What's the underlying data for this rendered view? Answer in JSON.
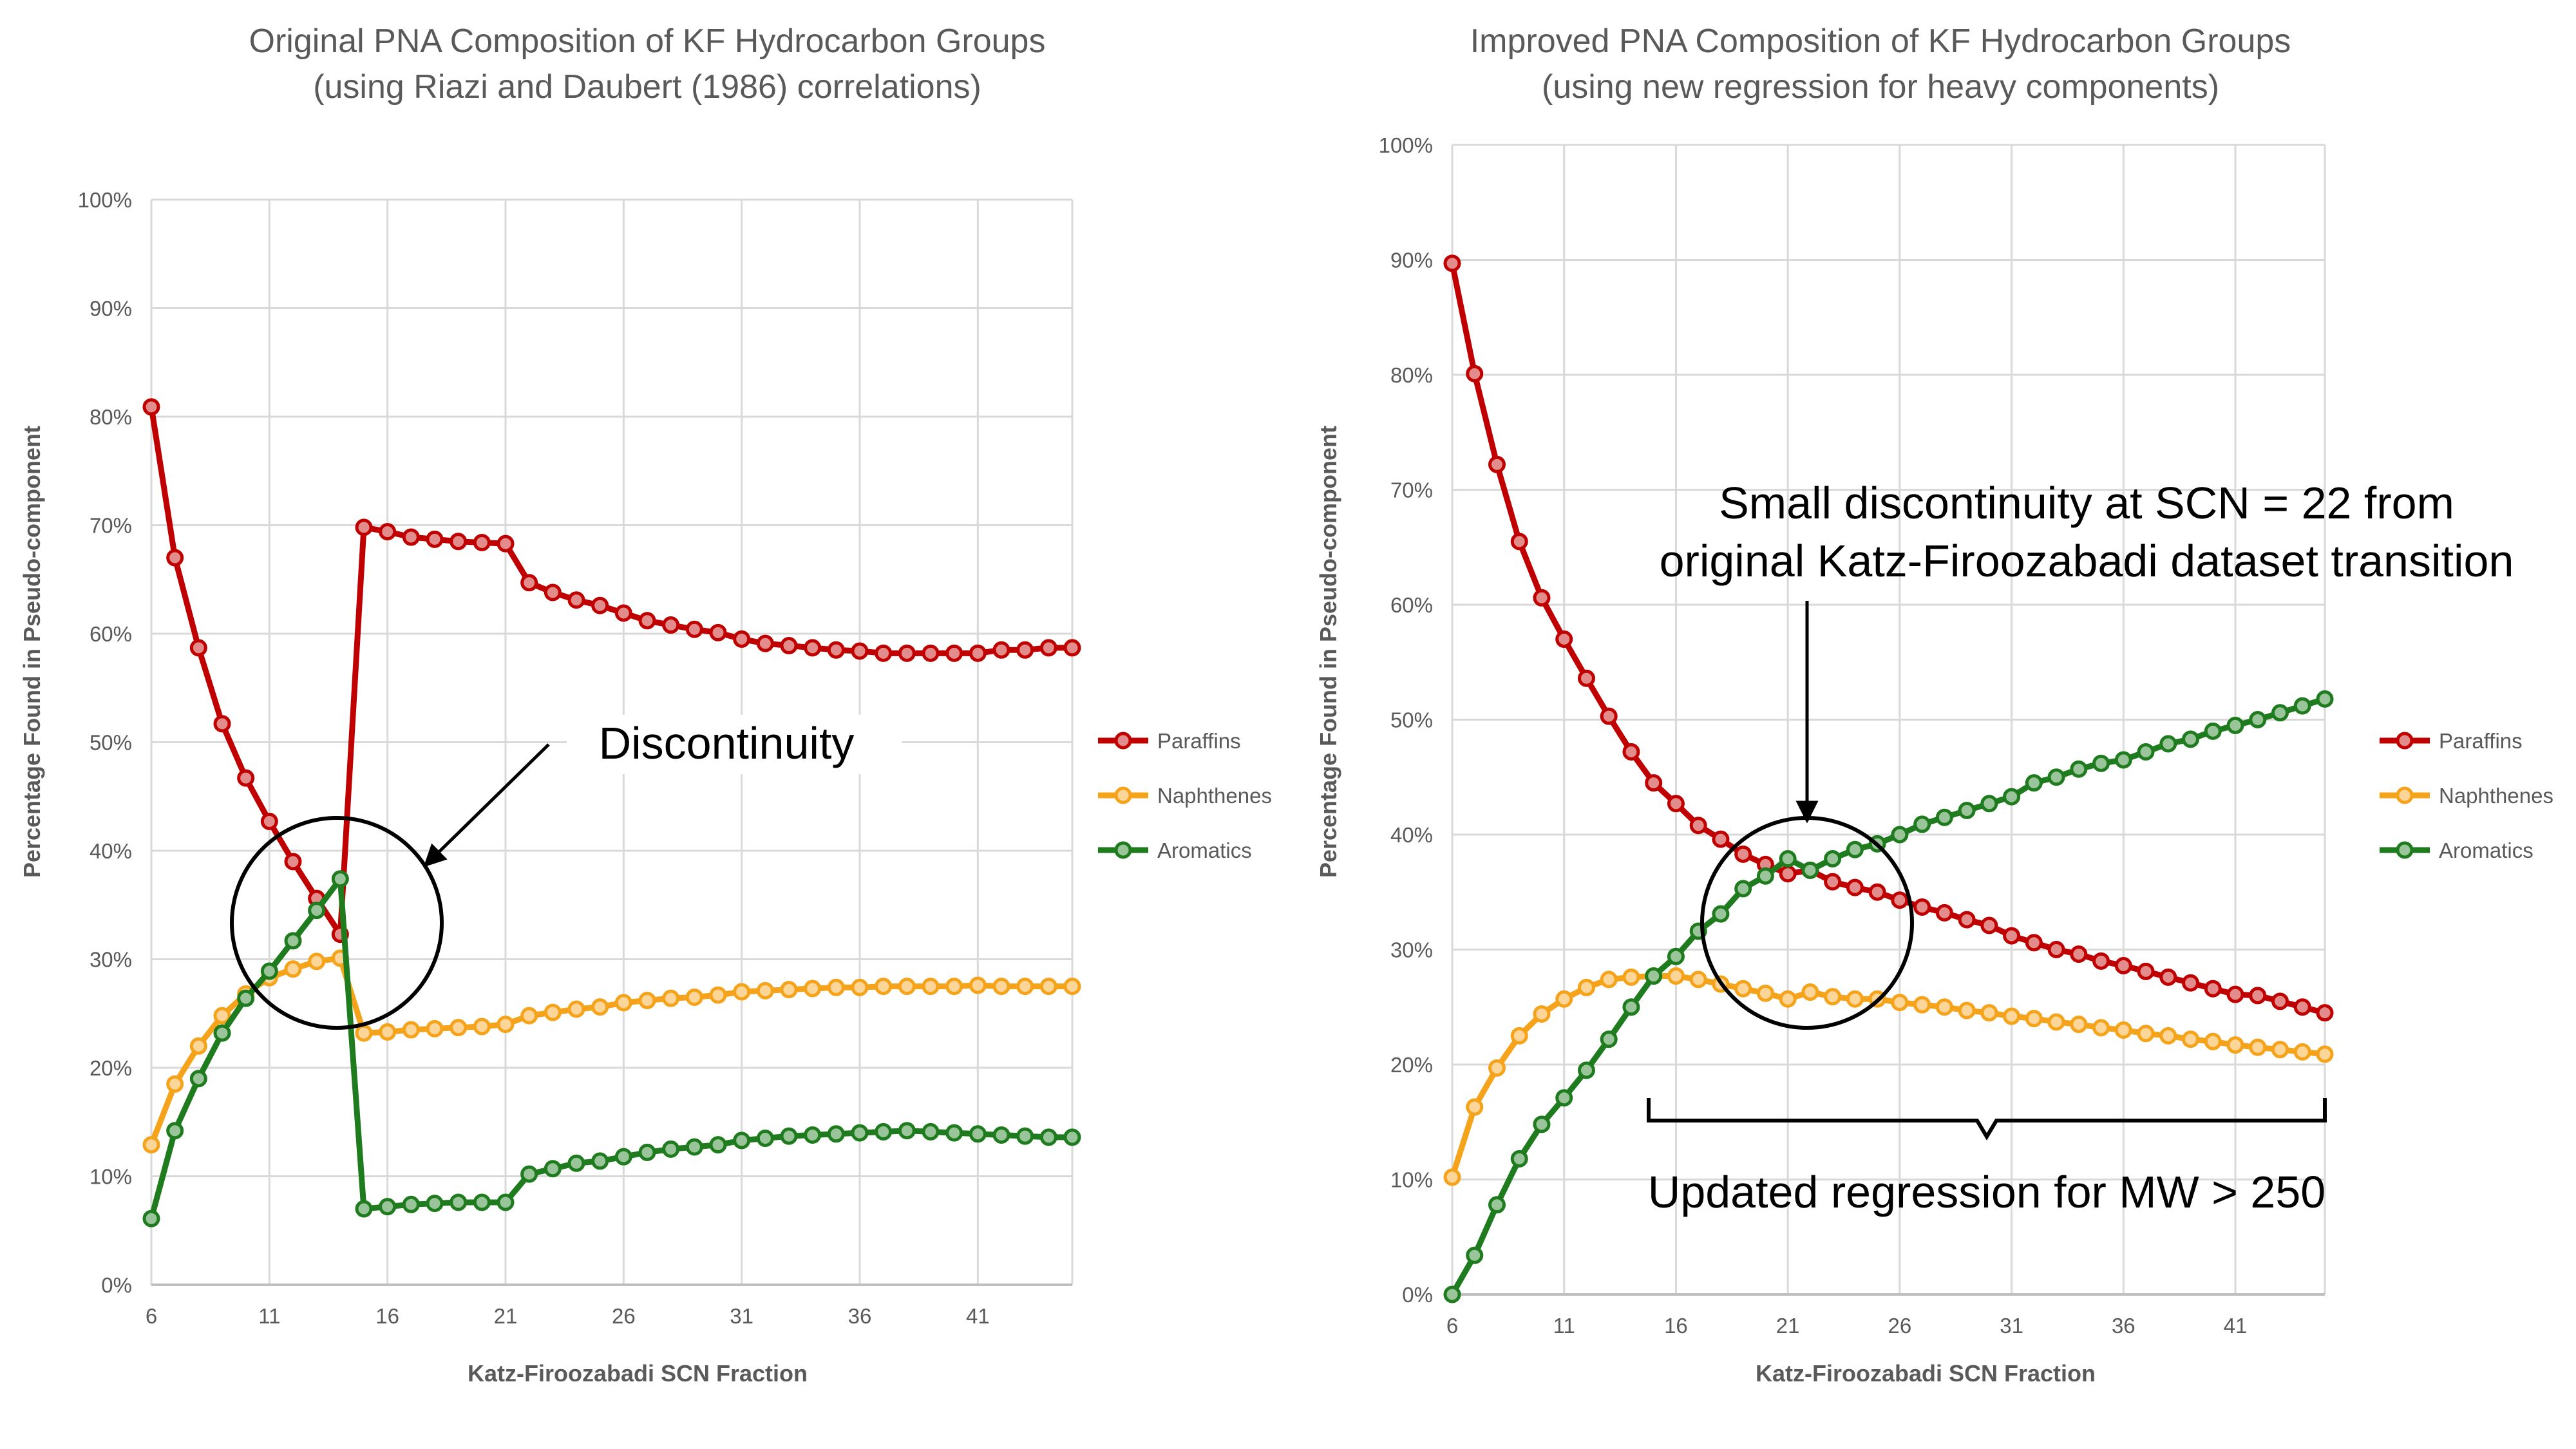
{
  "chart_data": [
    {
      "type": "line",
      "title": "Original PNA Composition of KF Hydrocarbon Groups",
      "subtitle": "(using Riazi and Daubert (1986) correlations)",
      "xlabel": "Katz-Firoozabadi SCN Fraction",
      "ylabel": "Percentage Found in Pseudo-component",
      "xlim": [
        6,
        45
      ],
      "ylim": [
        0,
        100
      ],
      "x_ticks": [
        "6",
        "11",
        "16",
        "21",
        "26",
        "31",
        "36",
        "41"
      ],
      "y_ticks": [
        "0%",
        "10%",
        "20%",
        "30%",
        "40%",
        "50%",
        "60%",
        "70%",
        "80%",
        "90%",
        "100%"
      ],
      "grid": true,
      "legend_position": "right",
      "x": [
        6,
        7,
        8,
        9,
        10,
        11,
        12,
        13,
        14,
        15,
        16,
        17,
        18,
        19,
        20,
        21,
        22,
        23,
        24,
        25,
        26,
        27,
        28,
        29,
        30,
        31,
        32,
        33,
        34,
        35,
        36,
        37,
        38,
        39,
        40,
        41,
        42,
        43,
        44,
        45
      ],
      "series": [
        {
          "name": "Paraffins",
          "color": "#c00000",
          "values": [
            80.9,
            67.0,
            58.7,
            51.7,
            46.7,
            42.7,
            39.0,
            35.6,
            32.3,
            69.8,
            69.4,
            68.9,
            68.7,
            68.5,
            68.4,
            68.3,
            64.7,
            63.8,
            63.1,
            62.6,
            61.9,
            61.2,
            60.8,
            60.4,
            60.1,
            59.5,
            59.1,
            58.9,
            58.7,
            58.5,
            58.4,
            58.2,
            58.2,
            58.2,
            58.2,
            58.2,
            58.5,
            58.5,
            58.7,
            58.7
          ]
        },
        {
          "name": "Naphthenes",
          "color": "#f5a31a",
          "values": [
            12.9,
            18.5,
            22.0,
            24.8,
            26.8,
            28.3,
            29.1,
            29.8,
            30.1,
            23.2,
            23.3,
            23.5,
            23.6,
            23.7,
            23.8,
            24.0,
            24.8,
            25.1,
            25.4,
            25.6,
            26.0,
            26.2,
            26.4,
            26.5,
            26.7,
            27.0,
            27.1,
            27.2,
            27.3,
            27.4,
            27.4,
            27.5,
            27.5,
            27.5,
            27.5,
            27.6,
            27.5,
            27.5,
            27.5,
            27.5
          ]
        },
        {
          "name": "Aromatics",
          "color": "#1e7b1e",
          "values": [
            6.1,
            14.2,
            19.0,
            23.2,
            26.4,
            28.9,
            31.7,
            34.5,
            37.4,
            7.0,
            7.2,
            7.4,
            7.5,
            7.6,
            7.6,
            7.6,
            10.2,
            10.7,
            11.2,
            11.4,
            11.8,
            12.2,
            12.5,
            12.7,
            12.9,
            13.3,
            13.5,
            13.7,
            13.8,
            13.9,
            14.0,
            14.1,
            14.2,
            14.1,
            14.0,
            13.9,
            13.8,
            13.7,
            13.6,
            13.6
          ]
        }
      ],
      "annotations": [
        "Discontinuity"
      ]
    },
    {
      "type": "line",
      "title": "Improved PNA Composition of KF Hydrocarbon Groups",
      "subtitle": "(using new regression for heavy components)",
      "xlabel": "Katz-Firoozabadi SCN Fraction",
      "ylabel": "Percentage Found in Pseudo-component",
      "xlim": [
        6,
        45
      ],
      "ylim": [
        0,
        100
      ],
      "x_ticks": [
        "6",
        "11",
        "16",
        "21",
        "26",
        "31",
        "36",
        "41"
      ],
      "y_ticks": [
        "0%",
        "10%",
        "20%",
        "30%",
        "40%",
        "50%",
        "60%",
        "70%",
        "80%",
        "90%",
        "100%"
      ],
      "grid": true,
      "legend_position": "right",
      "x": [
        6,
        7,
        8,
        9,
        10,
        11,
        12,
        13,
        14,
        15,
        16,
        17,
        18,
        19,
        20,
        21,
        22,
        23,
        24,
        25,
        26,
        27,
        28,
        29,
        30,
        31,
        32,
        33,
        34,
        35,
        36,
        37,
        38,
        39,
        40,
        41,
        42,
        43,
        44,
        45
      ],
      "series": [
        {
          "name": "Paraffins",
          "color": "#c00000",
          "values": [
            89.7,
            80.1,
            72.2,
            65.5,
            60.6,
            57.0,
            53.6,
            50.3,
            47.2,
            44.5,
            42.7,
            40.8,
            39.6,
            38.3,
            37.4,
            36.6,
            36.9,
            35.9,
            35.4,
            35.0,
            34.3,
            33.7,
            33.2,
            32.6,
            32.1,
            31.2,
            30.6,
            30.0,
            29.6,
            29.0,
            28.6,
            28.1,
            27.6,
            27.1,
            26.6,
            26.1,
            26.0,
            25.5,
            25.0,
            24.5
          ]
        },
        {
          "name": "Naphthenes",
          "color": "#f5a31a",
          "values": [
            10.2,
            16.3,
            19.7,
            22.5,
            24.4,
            25.7,
            26.7,
            27.4,
            27.6,
            27.7,
            27.7,
            27.4,
            27.0,
            26.6,
            26.2,
            25.7,
            26.3,
            25.9,
            25.7,
            25.7,
            25.4,
            25.2,
            25.0,
            24.7,
            24.5,
            24.2,
            24.0,
            23.7,
            23.5,
            23.2,
            23.0,
            22.7,
            22.5,
            22.2,
            22.0,
            21.7,
            21.5,
            21.3,
            21.1,
            20.9
          ]
        },
        {
          "name": "Aromatics",
          "color": "#1e7b1e",
          "values": [
            0.0,
            3.4,
            7.8,
            11.8,
            14.8,
            17.1,
            19.5,
            22.2,
            25.0,
            27.7,
            29.4,
            31.6,
            33.1,
            35.3,
            36.4,
            37.9,
            36.9,
            37.9,
            38.7,
            39.2,
            40.0,
            40.9,
            41.5,
            42.1,
            42.7,
            43.3,
            44.5,
            45.0,
            45.7,
            46.2,
            46.5,
            47.2,
            47.9,
            48.3,
            49.0,
            49.5,
            50.0,
            50.6,
            51.2,
            51.8
          ]
        }
      ],
      "annotations": [
        "Small discontinuity at SCN = 22 from",
        "original Katz-Firoozabadi dataset transition",
        "Updated regression for MW > 250"
      ]
    }
  ]
}
